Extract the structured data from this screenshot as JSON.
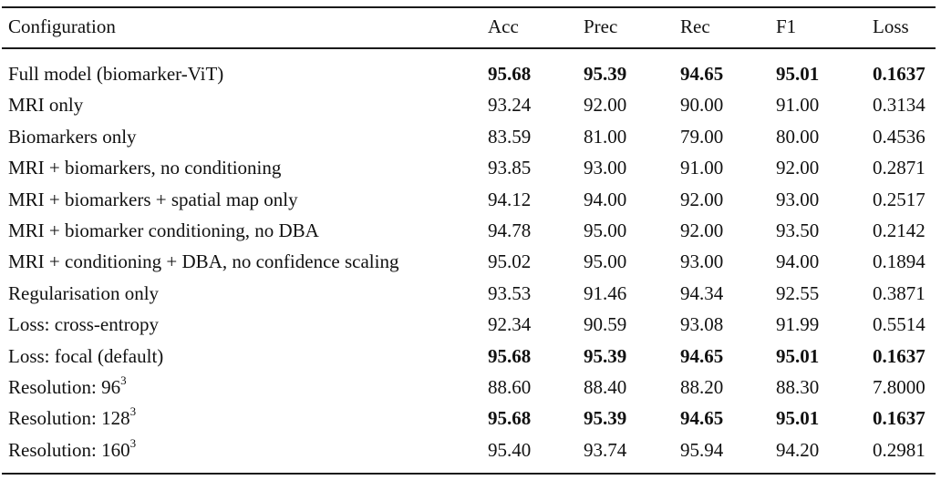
{
  "table": {
    "headers": [
      "Configuration",
      "Acc",
      "Prec",
      "Rec",
      "F1",
      "Loss"
    ],
    "rows": [
      {
        "config": "Full model (biomarker-ViT)",
        "sup": "",
        "acc": "95.68",
        "prec": "95.39",
        "rec": "94.65",
        "f1": "95.01",
        "loss": "0.1637",
        "bold": true
      },
      {
        "config": "MRI only",
        "sup": "",
        "acc": "93.24",
        "prec": "92.00",
        "rec": "90.00",
        "f1": "91.00",
        "loss": "0.3134",
        "bold": false
      },
      {
        "config": "Biomarkers only",
        "sup": "",
        "acc": "83.59",
        "prec": "81.00",
        "rec": "79.00",
        "f1": "80.00",
        "loss": "0.4536",
        "bold": false
      },
      {
        "config": "MRI + biomarkers, no conditioning",
        "sup": "",
        "acc": "93.85",
        "prec": "93.00",
        "rec": "91.00",
        "f1": "92.00",
        "loss": "0.2871",
        "bold": false
      },
      {
        "config": "MRI + biomarkers + spatial map only",
        "sup": "",
        "acc": "94.12",
        "prec": "94.00",
        "rec": "92.00",
        "f1": "93.00",
        "loss": "0.2517",
        "bold": false
      },
      {
        "config": "MRI + biomarker conditioning, no DBA",
        "sup": "",
        "acc": "94.78",
        "prec": "95.00",
        "rec": "92.00",
        "f1": "93.50",
        "loss": "0.2142",
        "bold": false
      },
      {
        "config": "MRI + conditioning + DBA, no confidence scaling",
        "sup": "",
        "acc": "95.02",
        "prec": "95.00",
        "rec": "93.00",
        "f1": "94.00",
        "loss": "0.1894",
        "bold": false
      },
      {
        "config": "Regularisation only",
        "sup": "",
        "acc": "93.53",
        "prec": "91.46",
        "rec": "94.34",
        "f1": "92.55",
        "loss": "0.3871",
        "bold": false
      },
      {
        "config": "Loss: cross-entropy",
        "sup": "",
        "acc": "92.34",
        "prec": "90.59",
        "rec": "93.08",
        "f1": "91.99",
        "loss": "0.5514",
        "bold": false
      },
      {
        "config": "Loss: focal (default)",
        "sup": "",
        "acc": "95.68",
        "prec": "95.39",
        "rec": "94.65",
        "f1": "95.01",
        "loss": "0.1637",
        "bold": true
      },
      {
        "config": "Resolution: 96",
        "sup": "3",
        "acc": "88.60",
        "prec": "88.40",
        "rec": "88.20",
        "f1": "88.30",
        "loss": "7.8000",
        "bold": false
      },
      {
        "config": "Resolution: 128",
        "sup": "3",
        "acc": "95.68",
        "prec": "95.39",
        "rec": "94.65",
        "f1": "95.01",
        "loss": "0.1637",
        "bold": true
      },
      {
        "config": "Resolution: 160",
        "sup": "3",
        "acc": "95.40",
        "prec": "93.74",
        "rec": "95.94",
        "f1": "94.20",
        "loss": "0.2981",
        "bold": false
      }
    ]
  }
}
